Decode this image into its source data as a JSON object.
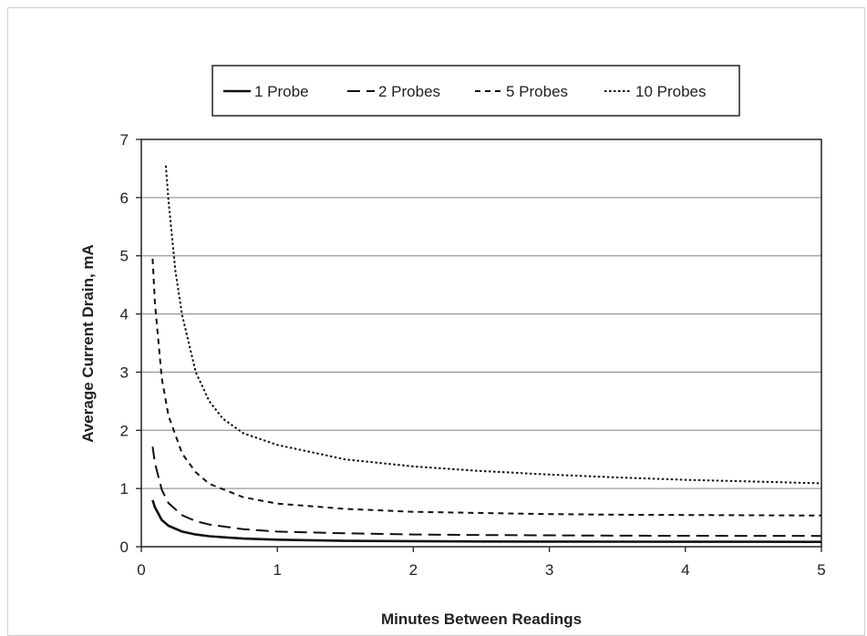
{
  "chart_data": {
    "type": "line",
    "title": "",
    "xlabel": "Minutes Between Readings",
    "ylabel": "Average Current Drain, mA",
    "xlim": [
      0,
      5
    ],
    "ylim": [
      0,
      7
    ],
    "xticks": [
      0,
      1,
      2,
      3,
      4,
      5
    ],
    "yticks": [
      0,
      1,
      2,
      3,
      4,
      5,
      6,
      7
    ],
    "grid": "horizontal",
    "legend_position": "top",
    "series": [
      {
        "name": "1 Probe",
        "style": "solid",
        "x": [
          0.083,
          0.1,
          0.15,
          0.2,
          0.3,
          0.4,
          0.5,
          0.75,
          1,
          1.5,
          2,
          2.5,
          3,
          3.5,
          4,
          4.5,
          5
        ],
        "y": [
          0.8,
          0.68,
          0.46,
          0.36,
          0.26,
          0.21,
          0.18,
          0.14,
          0.12,
          0.1,
          0.095,
          0.09,
          0.088,
          0.086,
          0.085,
          0.084,
          0.083
        ]
      },
      {
        "name": "2 Probes",
        "style": "dashed",
        "x": [
          0.083,
          0.1,
          0.15,
          0.2,
          0.3,
          0.4,
          0.5,
          0.75,
          1,
          1.5,
          2,
          2.5,
          3,
          3.5,
          4,
          4.5,
          5
        ],
        "y": [
          1.72,
          1.44,
          0.98,
          0.75,
          0.54,
          0.44,
          0.38,
          0.3,
          0.26,
          0.23,
          0.21,
          0.2,
          0.195,
          0.19,
          0.188,
          0.186,
          0.185
        ]
      },
      {
        "name": "5 Probes",
        "style": "short-dash",
        "x": [
          0.083,
          0.1,
          0.15,
          0.2,
          0.3,
          0.4,
          0.5,
          0.75,
          1,
          1.5,
          2,
          2.5,
          3,
          3.5,
          4,
          4.5,
          5
        ],
        "y": [
          4.95,
          4.2,
          2.9,
          2.25,
          1.6,
          1.28,
          1.08,
          0.85,
          0.74,
          0.65,
          0.6,
          0.58,
          0.56,
          0.55,
          0.545,
          0.54,
          0.535
        ]
      },
      {
        "name": "10 Probes",
        "style": "dotted",
        "x": [
          0.18,
          0.2,
          0.25,
          0.3,
          0.4,
          0.5,
          0.6,
          0.75,
          1,
          1.5,
          2,
          2.5,
          3,
          3.5,
          4,
          4.5,
          5
        ],
        "y": [
          6.55,
          5.95,
          4.75,
          3.98,
          3.0,
          2.5,
          2.2,
          1.95,
          1.75,
          1.5,
          1.38,
          1.3,
          1.24,
          1.19,
          1.15,
          1.12,
          1.09
        ]
      }
    ]
  }
}
